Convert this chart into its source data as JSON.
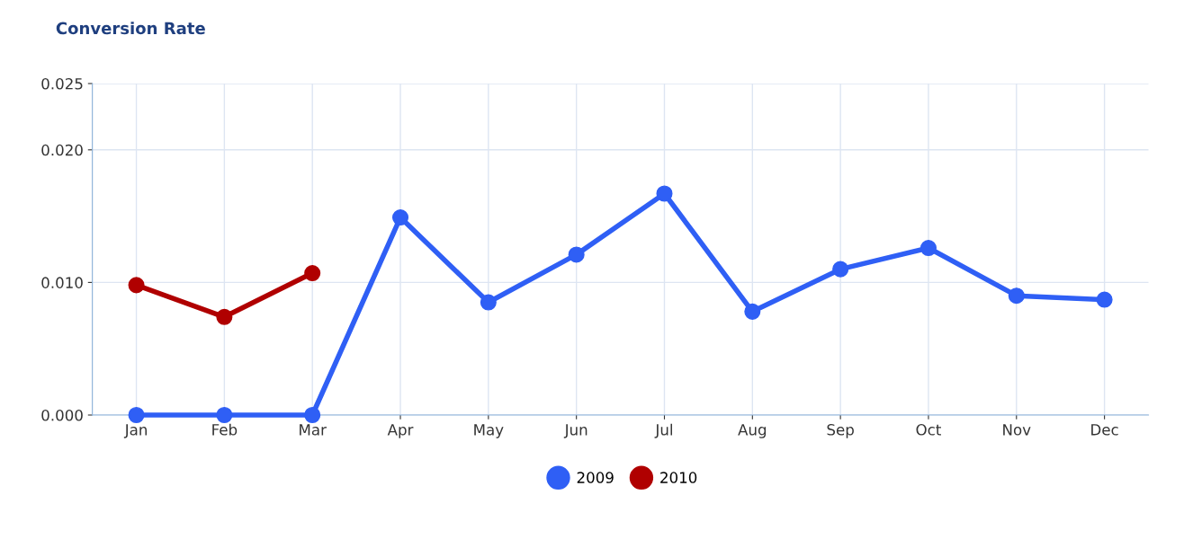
{
  "chart_data": {
    "type": "line",
    "title": "Conversion Rate",
    "categories": [
      "Jan",
      "Feb",
      "Mar",
      "Apr",
      "May",
      "Jun",
      "Jul",
      "Aug",
      "Sep",
      "Oct",
      "Nov",
      "Dec"
    ],
    "series": [
      {
        "name": "2009",
        "color": "#2f5ff5",
        "values": [
          0.0,
          0.0,
          0.0,
          0.0149,
          0.0085,
          0.0121,
          0.0167,
          0.0078,
          0.011,
          0.0126,
          0.009,
          0.0087
        ]
      },
      {
        "name": "2010",
        "color": "#b00000",
        "values": [
          0.0098,
          0.0074,
          0.0107,
          null,
          null,
          null,
          null,
          null,
          null,
          null,
          null,
          null
        ]
      }
    ],
    "ylim": [
      0,
      0.025
    ],
    "yticks": [
      {
        "value": 0,
        "label": "0.000"
      },
      {
        "value": 0.01,
        "label": "0.010"
      },
      {
        "value": 0.02,
        "label": "0.020"
      },
      {
        "value": 0.025,
        "label": "0.025"
      }
    ],
    "grid": true,
    "legend": "bottom",
    "marker": "circle",
    "line_style": "solid"
  }
}
